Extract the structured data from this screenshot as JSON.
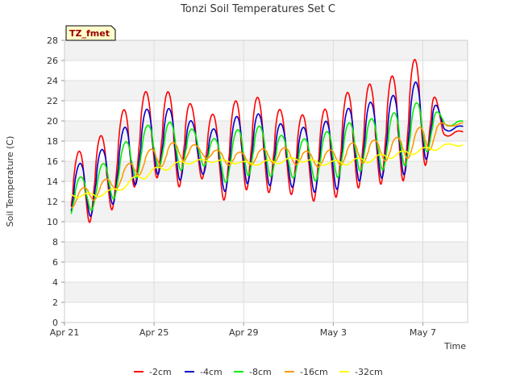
{
  "chart_data": {
    "type": "line",
    "title": "Tonzi Soil Temperatures Set C",
    "xlabel": "Time",
    "ylabel": "Soil Temperature (C)",
    "tag": "TZ_fmet",
    "ylim": [
      0,
      28
    ],
    "y_ticks": [
      0,
      2,
      4,
      6,
      8,
      10,
      12,
      14,
      16,
      18,
      20,
      22,
      24,
      26,
      28
    ],
    "xlim": [
      "2000-04-21",
      "2000-05-09"
    ],
    "x_ticks": [
      {
        "label": "Apr 21",
        "day": 0
      },
      {
        "label": "Apr 25",
        "day": 4
      },
      {
        "label": "Apr 29",
        "day": 8
      },
      {
        "label": "May 3",
        "day": 12
      },
      {
        "label": "May 7",
        "day": 16
      }
    ],
    "grid": true,
    "legend_position": "bottom",
    "colors": {
      "-2cm": "#ff0000",
      "-4cm": "#0000cc",
      "-8cm": "#00ee00",
      "-16cm": "#ff9900",
      "-32cm": "#ffff00"
    },
    "series": [
      {
        "name": "-2cm",
        "daily_min_max": [
          [
            9.1,
            15.0
          ],
          [
            9.8,
            18.1
          ],
          [
            10.9,
            18.8
          ],
          [
            13.3,
            22.4
          ],
          [
            14.5,
            23.2
          ],
          [
            13.3,
            22.7
          ],
          [
            14.6,
            21.1
          ],
          [
            12.0,
            20.4
          ],
          [
            13.2,
            22.9
          ],
          [
            12.9,
            22.0
          ],
          [
            12.8,
            20.6
          ],
          [
            12.0,
            20.6
          ],
          [
            12.3,
            21.5
          ],
          [
            13.3,
            23.6
          ],
          [
            13.7,
            23.7
          ],
          [
            13.9,
            24.9
          ],
          [
            15.2,
            26.8
          ],
          [
            18.5,
            19.0
          ]
        ]
      },
      {
        "name": "-4cm",
        "daily_min_max": [
          [
            9.8,
            14.3
          ],
          [
            10.4,
            16.6
          ],
          [
            11.5,
            17.5
          ],
          [
            13.5,
            20.4
          ],
          [
            14.8,
            21.6
          ],
          [
            14.0,
            21.0
          ],
          [
            15.0,
            19.4
          ],
          [
            12.9,
            19.1
          ],
          [
            13.8,
            21.2
          ],
          [
            13.6,
            20.4
          ],
          [
            13.5,
            19.3
          ],
          [
            12.9,
            19.4
          ],
          [
            13.1,
            20.3
          ],
          [
            14.0,
            21.8
          ],
          [
            14.3,
            21.9
          ],
          [
            14.5,
            22.9
          ],
          [
            15.8,
            24.4
          ],
          [
            19.0,
            19.5
          ]
        ]
      },
      {
        "name": "-8cm",
        "daily_min_max": [
          [
            10.2,
            13.8
          ],
          [
            11.0,
            14.8
          ],
          [
            12.0,
            16.3
          ],
          [
            14.2,
            18.8
          ],
          [
            15.4,
            20.0
          ],
          [
            15.0,
            19.8
          ],
          [
            15.8,
            18.8
          ],
          [
            13.8,
            17.9
          ],
          [
            14.6,
            19.8
          ],
          [
            14.5,
            19.3
          ],
          [
            14.4,
            18.1
          ],
          [
            14.0,
            18.3
          ],
          [
            14.3,
            19.3
          ],
          [
            15.0,
            20.1
          ],
          [
            15.1,
            20.3
          ],
          [
            15.4,
            21.1
          ],
          [
            16.6,
            22.2
          ],
          [
            19.5,
            20.0
          ]
        ]
      },
      {
        "name": "-16cm",
        "daily_min_max": [
          [
            11.3,
            12.8
          ],
          [
            12.0,
            13.7
          ],
          [
            13.1,
            14.5
          ],
          [
            14.5,
            16.4
          ],
          [
            15.4,
            17.6
          ],
          [
            16.0,
            18.0
          ],
          [
            16.4,
            17.4
          ],
          [
            15.6,
            16.9
          ],
          [
            15.6,
            16.9
          ],
          [
            15.8,
            17.4
          ],
          [
            15.7,
            17.3
          ],
          [
            15.4,
            16.8
          ],
          [
            15.6,
            17.3
          ],
          [
            15.8,
            18.1
          ],
          [
            16.0,
            18.1
          ],
          [
            16.2,
            18.5
          ],
          [
            16.8,
            19.8
          ],
          [
            19.5,
            19.8
          ]
        ]
      },
      {
        "name": "-32cm",
        "daily_min_max": [
          [
            12.4,
            12.9
          ],
          [
            12.4,
            12.8
          ],
          [
            13.0,
            13.4
          ],
          [
            14.1,
            14.9
          ],
          [
            15.0,
            15.6
          ],
          [
            15.7,
            16.1
          ],
          [
            15.9,
            16.2
          ],
          [
            15.8,
            16.1
          ],
          [
            15.6,
            15.9
          ],
          [
            15.7,
            16.2
          ],
          [
            16.0,
            16.4
          ],
          [
            15.6,
            16.0
          ],
          [
            15.6,
            16.1
          ],
          [
            15.8,
            16.4
          ],
          [
            16.2,
            16.8
          ],
          [
            16.6,
            17.1
          ],
          [
            17.0,
            17.5
          ],
          [
            17.5,
            17.8
          ]
        ]
      }
    ]
  }
}
